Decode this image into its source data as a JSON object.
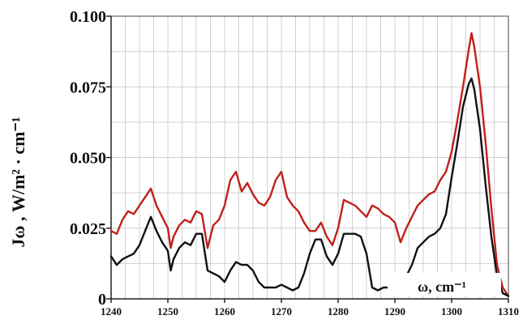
{
  "chart_data": {
    "type": "line",
    "title": "",
    "xlabel": "ω, cm⁻¹",
    "ylabel": "Jω , W/m² · cm⁻¹",
    "xlim": [
      1240,
      1310
    ],
    "ylim": [
      0,
      0.1
    ],
    "x_ticks": [
      "1240",
      "1250",
      "1260",
      "1270",
      "1280",
      "1290",
      "1300",
      "1310"
    ],
    "y_ticks": [
      "0",
      "0.025",
      "0.050",
      "0.075",
      "0.100"
    ],
    "grid": true,
    "series": [
      {
        "color": "#c0201b",
        "x": [
          1240,
          1241,
          1242,
          1243,
          1244,
          1245,
          1246,
          1247,
          1248,
          1249,
          1250,
          1250.5,
          1251,
          1252,
          1253,
          1254,
          1255,
          1256,
          1257,
          1258,
          1259,
          1260,
          1261,
          1262,
          1263,
          1264,
          1265,
          1266,
          1267,
          1268,
          1269,
          1270,
          1271,
          1272,
          1273,
          1274,
          1275,
          1276,
          1277,
          1278,
          1279,
          1280,
          1281,
          1282,
          1283,
          1284,
          1285,
          1286,
          1287,
          1288,
          1289,
          1290,
          1291,
          1292,
          1293,
          1294,
          1295,
          1296,
          1297,
          1298,
          1299,
          1300,
          1301,
          1302,
          1303,
          1303.5,
          1304,
          1305,
          1306,
          1307,
          1308,
          1309,
          1310
        ],
        "values": [
          0.024,
          0.023,
          0.028,
          0.031,
          0.03,
          0.033,
          0.036,
          0.039,
          0.033,
          0.029,
          0.025,
          0.018,
          0.022,
          0.026,
          0.028,
          0.027,
          0.031,
          0.03,
          0.018,
          0.026,
          0.028,
          0.033,
          0.042,
          0.045,
          0.038,
          0.041,
          0.037,
          0.034,
          0.033,
          0.036,
          0.042,
          0.045,
          0.036,
          0.033,
          0.031,
          0.027,
          0.024,
          0.024,
          0.027,
          0.022,
          0.019,
          0.025,
          0.035,
          0.034,
          0.033,
          0.031,
          0.029,
          0.033,
          0.032,
          0.03,
          0.029,
          0.027,
          0.02,
          0.025,
          0.029,
          0.033,
          0.035,
          0.037,
          0.038,
          0.042,
          0.045,
          0.052,
          0.063,
          0.075,
          0.088,
          0.094,
          0.089,
          0.075,
          0.055,
          0.032,
          0.012,
          0.004,
          0.001
        ]
      },
      {
        "color": "#111111",
        "x": [
          1240,
          1241,
          1242,
          1243,
          1244,
          1245,
          1246,
          1247,
          1248,
          1249,
          1250,
          1250.5,
          1251,
          1252,
          1253,
          1254,
          1255,
          1256,
          1257,
          1258,
          1259,
          1260,
          1261,
          1262,
          1263,
          1264,
          1265,
          1266,
          1267,
          1268,
          1269,
          1270,
          1271,
          1272,
          1273,
          1274,
          1275,
          1276,
          1277,
          1278,
          1279,
          1280,
          1281,
          1282,
          1283,
          1284,
          1285,
          1286,
          1287,
          1288,
          1289,
          1290,
          1291,
          1292,
          1293,
          1294,
          1295,
          1296,
          1297,
          1298,
          1299,
          1300,
          1301,
          1302,
          1303,
          1303.5,
          1304,
          1305,
          1306,
          1307,
          1308,
          1309,
          1310
        ],
        "values": [
          0.015,
          0.012,
          0.014,
          0.015,
          0.016,
          0.019,
          0.024,
          0.029,
          0.024,
          0.02,
          0.017,
          0.01,
          0.014,
          0.018,
          0.02,
          0.019,
          0.023,
          0.023,
          0.01,
          0.009,
          0.008,
          0.006,
          0.01,
          0.013,
          0.012,
          0.012,
          0.01,
          0.006,
          0.004,
          0.004,
          0.004,
          0.005,
          0.004,
          0.003,
          0.004,
          0.009,
          0.016,
          0.021,
          0.021,
          0.015,
          0.012,
          0.016,
          0.023,
          0.023,
          0.023,
          0.022,
          0.016,
          0.004,
          0.003,
          0.004,
          0.004,
          0.005,
          0.006,
          0.008,
          0.012,
          0.018,
          0.02,
          0.022,
          0.023,
          0.025,
          0.03,
          0.043,
          0.055,
          0.068,
          0.076,
          0.078,
          0.074,
          0.06,
          0.04,
          0.022,
          0.008,
          0.002,
          0.001
        ]
      }
    ]
  }
}
